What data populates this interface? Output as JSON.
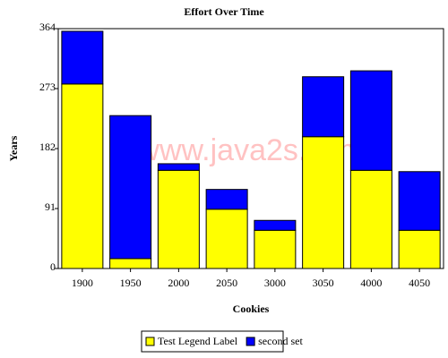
{
  "chart_data": {
    "type": "stacked_bar",
    "title": "Effort Over Time",
    "x_label": "Cookies",
    "y_label": "Years",
    "annotation": "www.java2s.com",
    "categories": [
      "1900",
      "1950",
      "2000",
      "2050",
      "3000",
      "3050",
      "4000",
      "4050"
    ],
    "series": [
      {
        "name": "Test Legend Label",
        "color": "#ffff00",
        "values": [
          280,
          15,
          149,
          90,
          58,
          200,
          149,
          58
        ]
      },
      {
        "name": "second set",
        "color": "#0000ff",
        "values": [
          80,
          217,
          10,
          30,
          15,
          91,
          151,
          89
        ]
      }
    ],
    "ylim": [
      0,
      364
    ],
    "yticks": [
      0,
      91,
      182,
      273,
      364
    ],
    "legend": "bottom"
  }
}
